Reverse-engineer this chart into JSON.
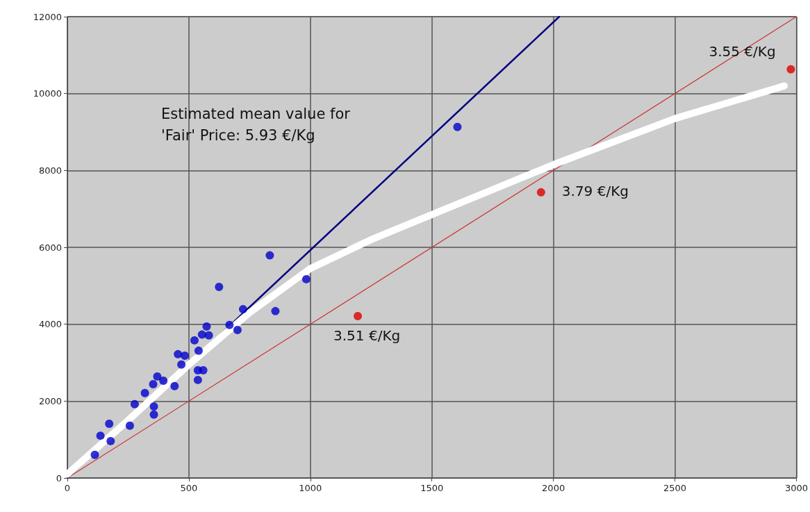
{
  "chart_data": {
    "type": "scatter",
    "annotations": [
      "Estimated mean value for 'Fair' Price: 5.93 €/Kg",
      {
        "text": "3.51 €/Kg",
        "x": 1195,
        "y": 4210
      },
      {
        "text": "3.79 €/Kg",
        "x": 1949,
        "y": 7430
      },
      {
        "text": "3.55 €/Kg",
        "x": 2977,
        "y": 10630
      }
    ],
    "xlim": [
      0,
      3000
    ],
    "xticks": [
      0,
      500,
      1000,
      1500,
      2000,
      2500,
      3000
    ],
    "ylim": [
      0,
      12000
    ],
    "yticks": [
      0,
      2000,
      4000,
      6000,
      8000,
      10000,
      12000
    ],
    "grid": true,
    "marker": "circle",
    "series": [
      {
        "type": "line",
        "color": "#000080",
        "x": [
          0,
          2024
        ],
        "values": [
          0,
          12000
        ],
        "marker": "none"
      },
      {
        "type": "line",
        "color": "#cc3333",
        "x": [
          0,
          3000
        ],
        "values": [
          0,
          12000
        ],
        "marker": "none"
      },
      {
        "type": "line",
        "color": "#ffffff",
        "x": [
          0,
          250,
          500,
          750,
          1000,
          1250,
          1500,
          2000,
          2500,
          2950
        ],
        "values": [
          100,
          1500,
          2950,
          4300,
          5450,
          6200,
          6850,
          8150,
          9350,
          10200
        ],
        "marker": "none"
      },
      {
        "color": "#0000cc",
        "x": [
          113,
          136,
          172,
          178,
          257,
          277,
          319,
          356,
          356,
          370,
          353,
          395,
          441,
          455,
          483,
          469,
          523,
          540,
          537,
          559,
          537,
          554,
          573,
          582,
          624,
          667,
          700,
          723,
          833,
          856,
          983,
          1605
        ],
        "values": [
          600,
          1100,
          1410,
          960,
          1360,
          1920,
          2210,
          1860,
          1650,
          2640,
          2440,
          2530,
          2390,
          3220,
          3180,
          2950,
          3580,
          3310,
          2800,
          2800,
          2550,
          3730,
          3940,
          3710,
          4970,
          3980,
          3850,
          4390,
          5790,
          4340,
          5170,
          9130
        ]
      },
      {
        "color": "#dd0000",
        "x": [
          1195,
          1949,
          2977
        ],
        "values": [
          4210,
          7430,
          10630
        ]
      }
    ]
  }
}
